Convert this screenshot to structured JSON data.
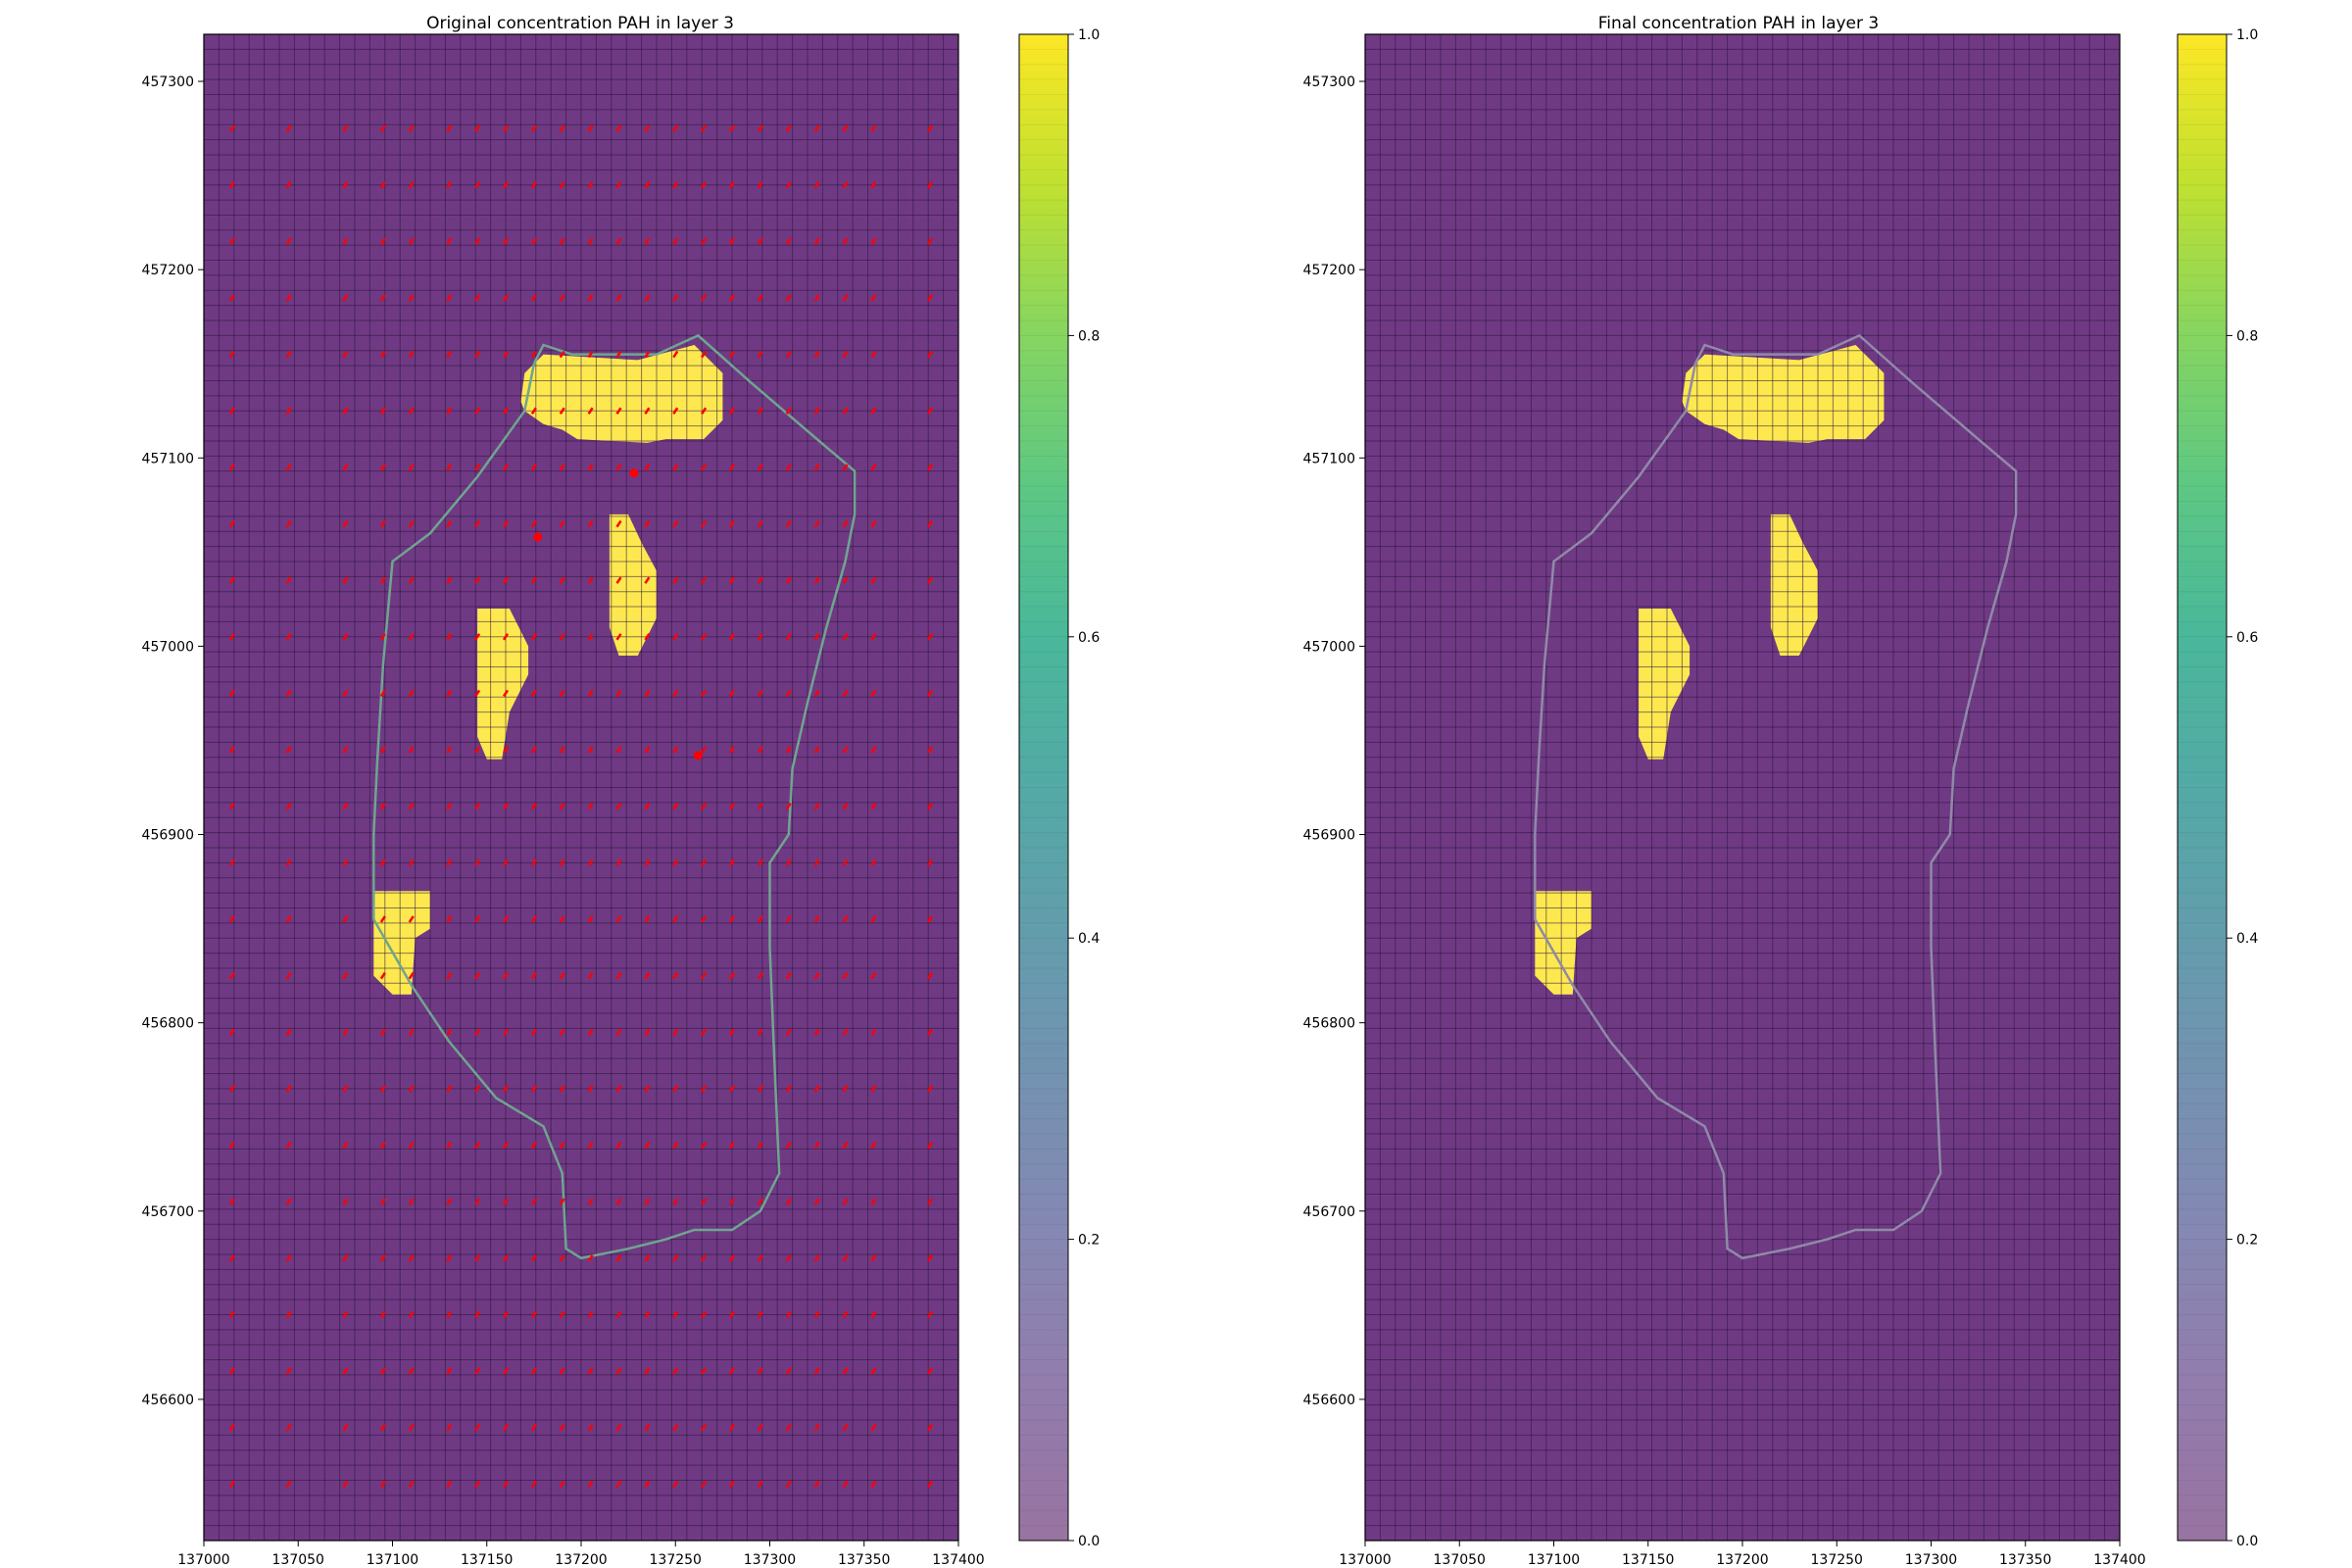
{
  "chart_data": [
    {
      "type": "heatmap",
      "title": "Original concentration PAH in layer 3",
      "xlim": [
        137000,
        137400
      ],
      "ylim": [
        456525,
        457325
      ],
      "x_ticks": [
        "137000",
        "137050",
        "137100",
        "137150",
        "137200",
        "137250",
        "137300",
        "137350",
        "137400"
      ],
      "y_ticks": [
        "456600",
        "456700",
        "456800",
        "456900",
        "457000",
        "457100",
        "457200",
        "457300"
      ],
      "colorbar": {
        "colormap": "viridis",
        "range": [
          0,
          1
        ],
        "ticks": [
          "0.0",
          "0.2",
          "0.4",
          "0.6",
          "0.8",
          "1.0"
        ]
      },
      "background_value": 0,
      "background_color": "#6f3a83",
      "grid_line_color": "#2b1240",
      "boundary_color": "#6fa58f",
      "marker_color": "#ff0000",
      "has_boundary": true,
      "has_markers": true
    },
    {
      "type": "heatmap",
      "title": "Final concentration PAH in layer 3",
      "xlim": [
        137000,
        137400
      ],
      "ylim": [
        456525,
        457325
      ],
      "x_ticks": [
        "137000",
        "137050",
        "137100",
        "137150",
        "137200",
        "137250",
        "137300",
        "137350",
        "137400"
      ],
      "y_ticks": [
        "456600",
        "456700",
        "456800",
        "456900",
        "457000",
        "457100",
        "457200",
        "457300"
      ],
      "colorbar": {
        "colormap": "viridis",
        "range": [
          0,
          1
        ],
        "ticks": [
          "0.0",
          "0.2",
          "0.4",
          "0.6",
          "0.8",
          "1.0"
        ]
      },
      "background_value": 0,
      "background_color": "#6f3a83",
      "grid_line_color": "#2b1240",
      "boundary_color": "#8f8aa8",
      "has_boundary": true,
      "has_markers": false
    }
  ],
  "shared": {
    "high_value_color": "#fde94f",
    "high_zones": [
      {
        "value": 1,
        "polygon": [
          [
            137170,
            457145
          ],
          [
            137180,
            457155
          ],
          [
            137230,
            457152
          ],
          [
            137260,
            457160
          ],
          [
            137275,
            457145
          ],
          [
            137275,
            457120
          ],
          [
            137265,
            457110
          ],
          [
            137245,
            457110
          ],
          [
            137235,
            457108
          ],
          [
            137198,
            457110
          ],
          [
            137190,
            457115
          ],
          [
            137180,
            457118
          ],
          [
            137170,
            457125
          ],
          [
            137168,
            457130
          ]
        ]
      },
      {
        "value": 1,
        "polygon": [
          [
            137215,
            457070
          ],
          [
            137225,
            457070
          ],
          [
            137232,
            457055
          ],
          [
            137240,
            457040
          ],
          [
            137240,
            457015
          ],
          [
            137230,
            456995
          ],
          [
            137220,
            456995
          ],
          [
            137215,
            457010
          ]
        ]
      },
      {
        "value": 1,
        "polygon": [
          [
            137145,
            457020
          ],
          [
            137162,
            457020
          ],
          [
            137172,
            457000
          ],
          [
            137172,
            456985
          ],
          [
            137162,
            456965
          ],
          [
            137158,
            456940
          ],
          [
            137150,
            456940
          ],
          [
            137145,
            456952
          ]
        ]
      },
      {
        "value": 1,
        "polygon": [
          [
            137090,
            456870
          ],
          [
            137120,
            456870
          ],
          [
            137120,
            456850
          ],
          [
            137112,
            456845
          ],
          [
            137110,
            456815
          ],
          [
            137100,
            456815
          ],
          [
            137090,
            456825
          ]
        ]
      }
    ],
    "boundary": [
      [
        137180,
        457160
      ],
      [
        137195,
        457155
      ],
      [
        137240,
        457155
      ],
      [
        137262,
        457165
      ],
      [
        137290,
        457140
      ],
      [
        137325,
        457110
      ],
      [
        137345,
        457093
      ],
      [
        137345,
        457070
      ],
      [
        137340,
        457045
      ],
      [
        137330,
        457010
      ],
      [
        137320,
        456970
      ],
      [
        137312,
        456935
      ],
      [
        137310,
        456900
      ],
      [
        137300,
        456885
      ],
      [
        137300,
        456840
      ],
      [
        137302,
        456790
      ],
      [
        137305,
        456720
      ],
      [
        137295,
        456700
      ],
      [
        137280,
        456690
      ],
      [
        137260,
        456690
      ],
      [
        137245,
        456685
      ],
      [
        137225,
        456680
      ],
      [
        137200,
        456675
      ],
      [
        137192,
        456680
      ],
      [
        137190,
        456720
      ],
      [
        137180,
        456745
      ],
      [
        137155,
        456760
      ],
      [
        137130,
        456790
      ],
      [
        137110,
        456820
      ],
      [
        137090,
        456855
      ],
      [
        137090,
        456900
      ],
      [
        137092,
        456940
      ],
      [
        137095,
        456990
      ],
      [
        137100,
        457045
      ],
      [
        137120,
        457060
      ],
      [
        137145,
        457090
      ],
      [
        137170,
        457125
      ],
      [
        137175,
        457150
      ]
    ]
  }
}
